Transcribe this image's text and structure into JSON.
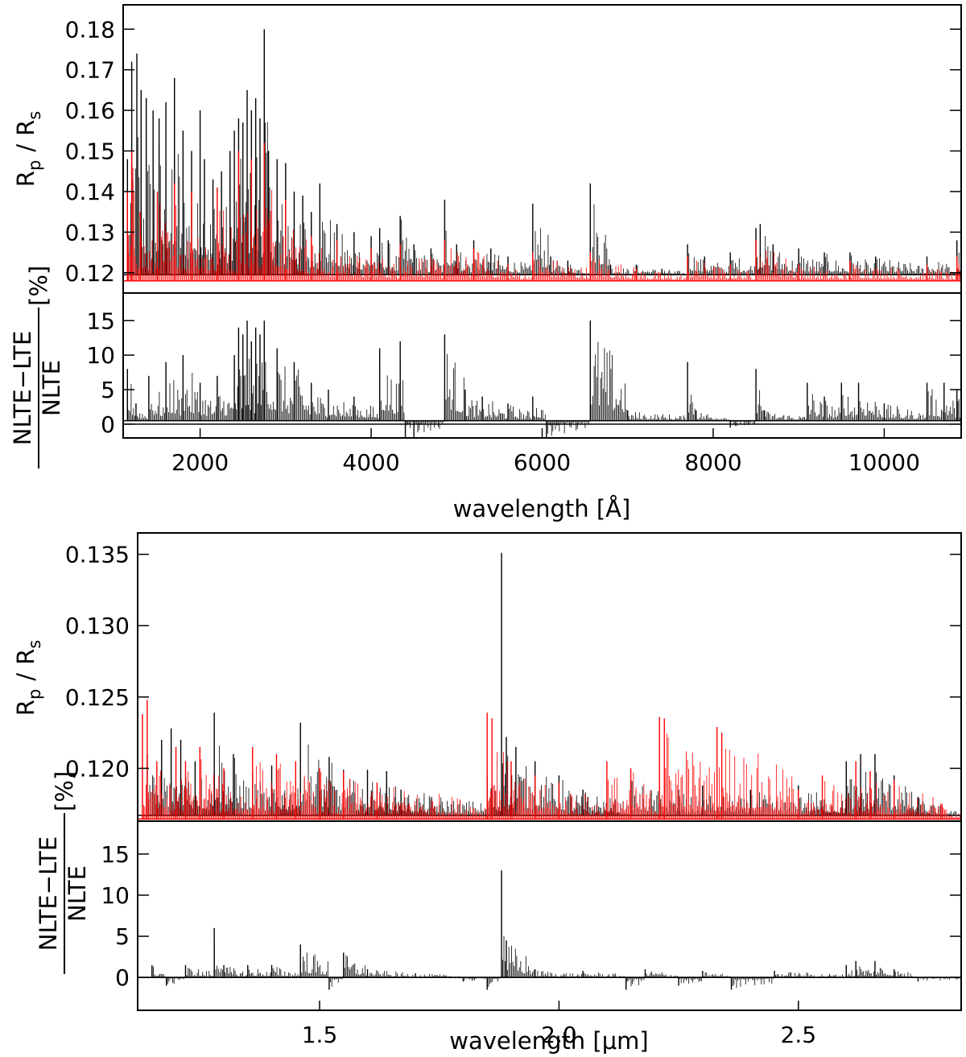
{
  "chart_data": [
    {
      "type": "line",
      "panel": "top-upper",
      "ylabel": "R_p / R_s",
      "ylabel_main": "R",
      "ylabel_sub1": "p",
      "ylabel_slash": "/",
      "ylabel_main2": "R",
      "ylabel_sub2": "s",
      "xlim": [
        1100,
        10900
      ],
      "ylim": [
        0.115,
        0.186
      ],
      "yticks": [
        "0.12",
        "0.13",
        "0.14",
        "0.15",
        "0.16",
        "0.17",
        "0.18"
      ],
      "ytick_values": [
        0.12,
        0.13,
        0.14,
        0.15,
        0.16,
        0.17,
        0.18
      ],
      "series": [
        {
          "color": "#000000",
          "baseline": 0.1195,
          "spikes": [
            [
              1150,
              0.148
            ],
            [
              1200,
              0.172
            ],
            [
              1260,
              0.174
            ],
            [
              1310,
              0.165
            ],
            [
              1370,
              0.163
            ],
            [
              1450,
              0.16
            ],
            [
              1520,
              0.158
            ],
            [
              1600,
              0.162
            ],
            [
              1700,
              0.168
            ],
            [
              1800,
              0.155
            ],
            [
              1900,
              0.15
            ],
            [
              2000,
              0.16
            ],
            [
              2050,
              0.148
            ],
            [
              2150,
              0.143
            ],
            [
              2250,
              0.145
            ],
            [
              2350,
              0.15
            ],
            [
              2400,
              0.155
            ],
            [
              2450,
              0.158
            ],
            [
              2500,
              0.157
            ],
            [
              2550,
              0.165
            ],
            [
              2600,
              0.16
            ],
            [
              2650,
              0.163
            ],
            [
              2700,
              0.158
            ],
            [
              2750,
              0.18
            ],
            [
              2800,
              0.15
            ],
            [
              2900,
              0.148
            ],
            [
              3000,
              0.147
            ],
            [
              3100,
              0.14
            ],
            [
              3200,
              0.139
            ],
            [
              3300,
              0.135
            ],
            [
              3400,
              0.142
            ],
            [
              3600,
              0.132
            ],
            [
              3800,
              0.13
            ],
            [
              4000,
              0.129
            ],
            [
              4100,
              0.131
            ],
            [
              4200,
              0.128
            ],
            [
              4340,
              0.134
            ],
            [
              4500,
              0.127
            ],
            [
              4700,
              0.126
            ],
            [
              4860,
              0.138
            ],
            [
              5000,
              0.127
            ],
            [
              5200,
              0.128
            ],
            [
              5400,
              0.126
            ],
            [
              5600,
              0.124
            ],
            [
              5890,
              0.137
            ],
            [
              6100,
              0.124
            ],
            [
              6300,
              0.123
            ],
            [
              6563,
              0.142
            ],
            [
              6800,
              0.122
            ],
            [
              7100,
              0.122
            ],
            [
              7400,
              0.121
            ],
            [
              7700,
              0.127
            ],
            [
              7900,
              0.124
            ],
            [
              8200,
              0.125
            ],
            [
              8500,
              0.131
            ],
            [
              8550,
              0.132
            ],
            [
              8700,
              0.127
            ],
            [
              9000,
              0.126
            ],
            [
              9300,
              0.125
            ],
            [
              9600,
              0.125
            ],
            [
              9900,
              0.124
            ],
            [
              10500,
              0.124
            ],
            [
              10850,
              0.128
            ]
          ]
        },
        {
          "color": "#ff0000",
          "baseline": 0.118,
          "spikes": [
            [
              1150,
              0.14
            ],
            [
              1200,
              0.15
            ],
            [
              1300,
              0.135
            ],
            [
              1500,
              0.14
            ],
            [
              1700,
              0.142
            ],
            [
              1900,
              0.14
            ],
            [
              2200,
              0.141
            ],
            [
              2450,
              0.15
            ],
            [
              2600,
              0.148
            ],
            [
              2750,
              0.152
            ],
            [
              3000,
              0.138
            ],
            [
              3300,
              0.129
            ],
            [
              3600,
              0.128
            ],
            [
              4000,
              0.126
            ],
            [
              4340,
              0.127
            ],
            [
              4860,
              0.128
            ],
            [
              5200,
              0.126
            ],
            [
              5600,
              0.122
            ],
            [
              5890,
              0.125
            ],
            [
              6563,
              0.125
            ],
            [
              7100,
              0.121
            ],
            [
              7700,
              0.124
            ],
            [
              8200,
              0.122
            ],
            [
              8500,
              0.128
            ],
            [
              9000,
              0.122
            ],
            [
              9600,
              0.123
            ],
            [
              10500,
              0.122
            ],
            [
              10850,
              0.124
            ]
          ]
        }
      ]
    },
    {
      "type": "line",
      "panel": "top-lower",
      "ylabel_num": "NLTE−LTE",
      "ylabel_den": "NLTE",
      "ylabel_unit": "[%]",
      "xlabel": "wavelength [Å]",
      "xlim": [
        1100,
        10900
      ],
      "ylim": [
        -2,
        19
      ],
      "xticks": [
        "2000",
        "4000",
        "6000",
        "8000",
        "10000"
      ],
      "xtick_values": [
        2000,
        4000,
        6000,
        8000,
        10000
      ],
      "yticks": [
        "0",
        "5",
        "10",
        "15"
      ],
      "ytick_values": [
        0,
        5,
        10,
        15
      ],
      "series": [
        {
          "color": "#000000",
          "baseline": 0.5,
          "spikes": [
            [
              1150,
              8
            ],
            [
              1250,
              3
            ],
            [
              1400,
              7
            ],
            [
              1600,
              9
            ],
            [
              1800,
              10
            ],
            [
              2000,
              6
            ],
            [
              2200,
              7
            ],
            [
              2400,
              10
            ],
            [
              2450,
              14
            ],
            [
              2500,
              13
            ],
            [
              2550,
              15
            ],
            [
              2600,
              12
            ],
            [
              2650,
              14
            ],
            [
              2700,
              13
            ],
            [
              2750,
              15
            ],
            [
              2900,
              11
            ],
            [
              3100,
              9
            ],
            [
              3300,
              6
            ],
            [
              3500,
              5
            ],
            [
              3800,
              4
            ],
            [
              4100,
              11
            ],
            [
              4340,
              12
            ],
            [
              4400,
              -2
            ],
            [
              4500,
              -2
            ],
            [
              4860,
              13
            ],
            [
              5100,
              5
            ],
            [
              5300,
              4
            ],
            [
              5600,
              3
            ],
            [
              5890,
              4
            ],
            [
              6050,
              -2
            ],
            [
              6563,
              15
            ],
            [
              7000,
              2
            ],
            [
              7700,
              9
            ],
            [
              7800,
              2
            ],
            [
              8200,
              -0.5
            ],
            [
              8500,
              8
            ],
            [
              8600,
              2
            ],
            [
              9100,
              6
            ],
            [
              9300,
              4
            ],
            [
              9500,
              6
            ],
            [
              9700,
              6
            ],
            [
              10000,
              3
            ],
            [
              10500,
              6
            ],
            [
              10700,
              6
            ],
            [
              10850,
              5
            ]
          ]
        }
      ]
    },
    {
      "type": "line",
      "panel": "bottom-upper",
      "ylabel": "R_p / R_s",
      "ylabel_main": "R",
      "ylabel_sub1": "p",
      "ylabel_slash": "/",
      "ylabel_main2": "R",
      "ylabel_sub2": "s",
      "xlim": [
        1.12,
        2.84
      ],
      "ylim": [
        0.1163,
        0.1365
      ],
      "yticks": [
        "0.120",
        "0.125",
        "0.130",
        "0.135"
      ],
      "ytick_values": [
        0.12,
        0.125,
        0.13,
        0.135
      ],
      "series": [
        {
          "color": "#000000",
          "baseline": 0.1167,
          "spikes": [
            [
              1.14,
              0.121
            ],
            [
              1.17,
              0.122
            ],
            [
              1.19,
              0.1228
            ],
            [
              1.21,
              0.122
            ],
            [
              1.24,
              0.1205
            ],
            [
              1.28,
              0.1239
            ],
            [
              1.32,
              0.121
            ],
            [
              1.36,
              0.1198
            ],
            [
              1.4,
              0.1202
            ],
            [
              1.46,
              0.1232
            ],
            [
              1.52,
              0.1208
            ],
            [
              1.55,
              0.1199
            ],
            [
              1.6,
              0.1199
            ],
            [
              1.64,
              0.1198
            ],
            [
              1.67,
              0.1185
            ],
            [
              1.85,
              0.1195
            ],
            [
              1.88,
              0.1351
            ],
            [
              1.89,
              0.1222
            ],
            [
              1.91,
              0.1215
            ],
            [
              1.95,
              0.1205
            ],
            [
              2.0,
              0.1195
            ],
            [
              2.05,
              0.1185
            ],
            [
              2.15,
              0.1192
            ],
            [
              2.25,
              0.1185
            ],
            [
              2.3,
              0.1188
            ],
            [
              2.4,
              0.1185
            ],
            [
              2.5,
              0.1188
            ],
            [
              2.6,
              0.1205
            ],
            [
              2.63,
              0.121
            ],
            [
              2.66,
              0.121
            ],
            [
              2.7,
              0.1195
            ],
            [
              2.75,
              0.118
            ],
            [
              2.8,
              0.1172
            ]
          ]
        },
        {
          "color": "#ff0000",
          "baseline": 0.11645,
          "spikes": [
            [
              1.13,
              0.1238
            ],
            [
              1.14,
              0.1248
            ],
            [
              1.16,
              0.1205
            ],
            [
              1.2,
              0.1215
            ],
            [
              1.22,
              0.1205
            ],
            [
              1.25,
              0.1215
            ],
            [
              1.3,
              0.12
            ],
            [
              1.36,
              0.1215
            ],
            [
              1.41,
              0.121
            ],
            [
              1.45,
              0.1205
            ],
            [
              1.5,
              0.12
            ],
            [
              1.55,
              0.1198
            ],
            [
              1.62,
              0.119
            ],
            [
              1.85,
              0.1239
            ],
            [
              1.86,
              0.1235
            ],
            [
              1.9,
              0.1205
            ],
            [
              1.95,
              0.1195
            ],
            [
              2.0,
              0.119
            ],
            [
              2.1,
              0.1205
            ],
            [
              2.15,
              0.12
            ],
            [
              2.21,
              0.1236
            ],
            [
              2.22,
              0.1235
            ],
            [
              2.33,
              0.1229
            ],
            [
              2.34,
              0.1225
            ],
            [
              2.5,
              0.1185
            ],
            [
              2.55,
              0.1195
            ],
            [
              2.62,
              0.1205
            ],
            [
              2.65,
              0.1198
            ],
            [
              2.7,
              0.1192
            ],
            [
              2.8,
              0.1175
            ]
          ]
        }
      ]
    },
    {
      "type": "line",
      "panel": "bottom-lower",
      "ylabel_num": "NLTE−LTE",
      "ylabel_den": "NLTE",
      "ylabel_unit": "[%]",
      "xlabel": "wavelength [μm]",
      "xlim": [
        1.12,
        2.84
      ],
      "ylim": [
        -4,
        19
      ],
      "xticks": [
        "1.5",
        "2.0",
        "2.5"
      ],
      "xtick_values": [
        1.5,
        2.0,
        2.5
      ],
      "yticks": [
        "0",
        "5",
        "10",
        "15"
      ],
      "ytick_values": [
        0,
        5,
        10,
        15
      ],
      "series": [
        {
          "color": "#000000",
          "baseline": 0.0,
          "spikes": [
            [
              1.15,
              1.5
            ],
            [
              1.18,
              -1.0
            ],
            [
              1.22,
              1.5
            ],
            [
              1.28,
              6.0
            ],
            [
              1.3,
              1.5
            ],
            [
              1.35,
              1.5
            ],
            [
              1.4,
              1.5
            ],
            [
              1.46,
              4.0
            ],
            [
              1.52,
              -1.5
            ],
            [
              1.55,
              3.0
            ],
            [
              1.6,
              1.0
            ],
            [
              1.7,
              0.5
            ],
            [
              1.8,
              -0.5
            ],
            [
              1.85,
              -1.5
            ],
            [
              1.88,
              13.0
            ],
            [
              1.89,
              4.5
            ],
            [
              1.95,
              1.0
            ],
            [
              2.05,
              0.8
            ],
            [
              2.14,
              -1.5
            ],
            [
              2.18,
              1.0
            ],
            [
              2.25,
              -1.0
            ],
            [
              2.3,
              0.8
            ],
            [
              2.36,
              -1.5
            ],
            [
              2.45,
              0.8
            ],
            [
              2.6,
              1.5
            ],
            [
              2.62,
              2.0
            ],
            [
              2.66,
              2.0
            ],
            [
              2.7,
              1.0
            ],
            [
              2.75,
              -0.5
            ]
          ]
        }
      ]
    }
  ]
}
